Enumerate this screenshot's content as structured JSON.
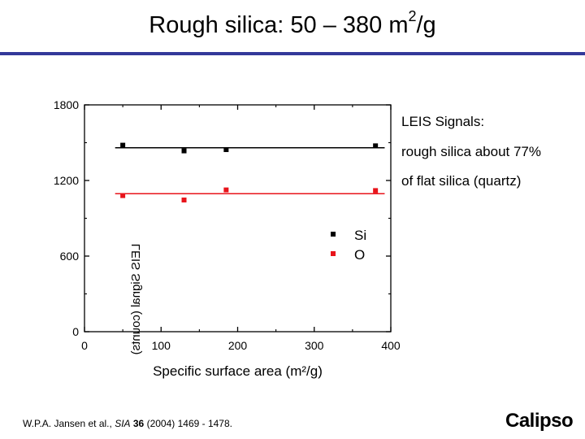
{
  "slide": {
    "title_main": "Rough silica:  50 – 380 m",
    "title_sup": "2",
    "title_tail": "/g",
    "notes": [
      "LEIS  Signals:",
      "rough silica about 77%",
      "of flat silica (quartz)"
    ],
    "citation": {
      "authors": "W.P.A. Jansen et al., ",
      "journal": "SIA",
      "volume": "36",
      "rest": " (2004) 1469 - 1478."
    },
    "logo_text": "Calipso",
    "colors": {
      "title_rule": "#33399a",
      "logo": "#2a78b0",
      "si": "#000000",
      "o": "#e8141b"
    }
  },
  "chart_data": {
    "type": "scatter",
    "xlabel": "Specific surface area (m²/g)",
    "ylabel": "LEIS Signal (counts)",
    "xlim": [
      0,
      400
    ],
    "ylim": [
      0,
      1800
    ],
    "xticks": [
      "0",
      "100",
      "200",
      "300",
      "400"
    ],
    "yticks": [
      "0",
      "600",
      "1200",
      "1800"
    ],
    "legend_position": "inside-right",
    "series": [
      {
        "name": "Si",
        "color": "#000000",
        "marker": "square",
        "x": [
          50,
          130,
          185,
          380
        ],
        "y": [
          1480,
          1435,
          1445,
          1475
        ],
        "fit": {
          "x": [
            40,
            392
          ],
          "y": [
            1460,
            1460
          ]
        }
      },
      {
        "name": "O",
        "color": "#e8141b",
        "marker": "square",
        "x": [
          50,
          130,
          185,
          380
        ],
        "y": [
          1080,
          1045,
          1125,
          1120
        ],
        "fit": {
          "x": [
            40,
            392
          ],
          "y": [
            1095,
            1095
          ]
        }
      }
    ]
  }
}
